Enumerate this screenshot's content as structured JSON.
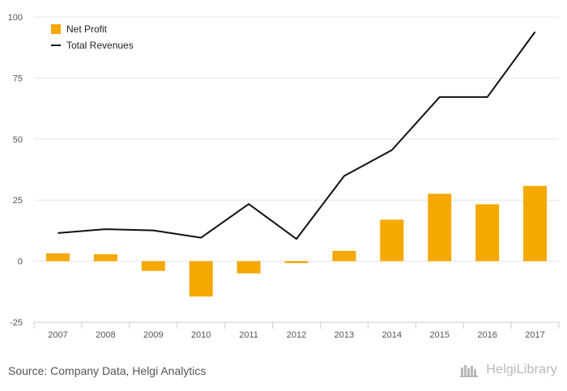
{
  "chart_data": {
    "type": "bar",
    "categories": [
      "2007",
      "2008",
      "2009",
      "2010",
      "2011",
      "2012",
      "2013",
      "2014",
      "2015",
      "2016",
      "2017"
    ],
    "series": [
      {
        "name": "Net Profit",
        "kind": "bar",
        "color": "#f5a800",
        "values": [
          3.2,
          2.8,
          -4.0,
          -14.5,
          -5.0,
          -0.8,
          4.2,
          17.0,
          27.6,
          23.3,
          30.8
        ]
      },
      {
        "name": "Total Revenues",
        "kind": "line",
        "color": "#111111",
        "values": [
          11.5,
          13.1,
          12.6,
          9.6,
          23.4,
          9.1,
          34.9,
          45.5,
          67.2,
          67.2,
          93.9
        ]
      }
    ],
    "ylim": [
      -25,
      100
    ],
    "yticks": [
      "100",
      "75",
      "50",
      "25",
      "0",
      "-25"
    ],
    "ytick_values": [
      100,
      75,
      50,
      25,
      0,
      -25
    ],
    "grid": true,
    "legend_position": "top-left",
    "title": "",
    "xlabel": "",
    "ylabel": ""
  },
  "footer": {
    "source": "Source: Company Data, Helgi Analytics",
    "brand": "HelgiLibrary"
  },
  "colors": {
    "bar": "#f5a800",
    "line": "#111111",
    "grid": "#e6e6e6",
    "axis_text": "#555555",
    "brand": "#b8b8b8"
  }
}
